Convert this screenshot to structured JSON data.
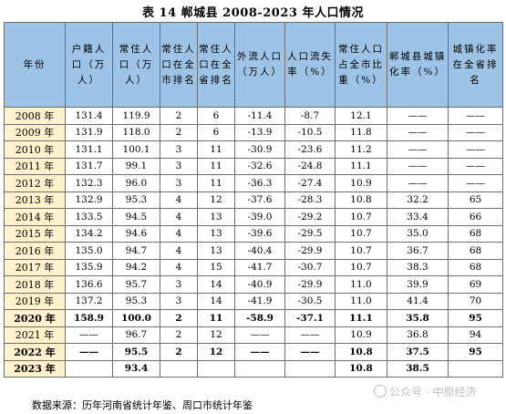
{
  "title": "表 14  郸城县 2008-2023 年人口情况",
  "columns": [
    "年份",
    "户籍人口（万人）",
    "常住人口（万人）",
    "常住人口在全市排名",
    "常住人口在全省排名",
    "外流人口（万人）",
    "人口流失率（%）",
    "常住人口占全市比重（%）",
    "郸城县城镇化率（%）",
    "城镇化率在全省排名"
  ],
  "rows": [
    {
      "year": "2008 年",
      "cells": [
        "131.4",
        "119.9",
        "2",
        "6",
        "-11.4",
        "-8.7",
        "12.1",
        "——",
        "——"
      ]
    },
    {
      "year": "2009 年",
      "cells": [
        "131.9",
        "118.0",
        "2",
        "6",
        "-13.9",
        "-10.5",
        "11.8",
        "——",
        "——"
      ]
    },
    {
      "year": "2010 年",
      "cells": [
        "131.1",
        "100.1",
        "3",
        "11",
        "-30.9",
        "-23.6",
        "11.2",
        "——",
        "——"
      ]
    },
    {
      "year": "2011 年",
      "cells": [
        "131.7",
        "99.1",
        "3",
        "11",
        "-32.6",
        "-24.8",
        "11.1",
        "——",
        "——"
      ]
    },
    {
      "year": "2012 年",
      "cells": [
        "132.3",
        "96.0",
        "3",
        "11",
        "-36.3",
        "-27.4",
        "10.9",
        "——",
        "——"
      ]
    },
    {
      "year": "2013 年",
      "cells": [
        "132.9",
        "95.3",
        "4",
        "12",
        "-37.6",
        "-28.3",
        "10.8",
        "32.2",
        "65"
      ]
    },
    {
      "year": "2014 年",
      "cells": [
        "133.5",
        "94.5",
        "4",
        "13",
        "-39.0",
        "-29.2",
        "10.7",
        "33.4",
        "66"
      ]
    },
    {
      "year": "2015 年",
      "cells": [
        "134.2",
        "94.6",
        "4",
        "13",
        "-39.6",
        "-29.5",
        "10.7",
        "35.0",
        "68"
      ]
    },
    {
      "year": "2016 年",
      "cells": [
        "135.0",
        "94.7",
        "4",
        "13",
        "-40.4",
        "-29.9",
        "10.7",
        "36.7",
        "68"
      ]
    },
    {
      "year": "2017 年",
      "cells": [
        "135.9",
        "94.2",
        "4",
        "15",
        "-41.7",
        "-30.7",
        "10.7",
        "38.3",
        "68"
      ]
    },
    {
      "year": "2018 年",
      "cells": [
        "136.6",
        "95.7",
        "3",
        "14",
        "-40.9",
        "-29.9",
        "11.0",
        "39.9",
        "69"
      ]
    },
    {
      "year": "2019 年",
      "cells": [
        "137.2",
        "95.3",
        "3",
        "14",
        "-41.9",
        "-30.5",
        "11.0",
        "41.4",
        "70"
      ]
    },
    {
      "year": "2020 年",
      "bold": true,
      "cells": [
        "158.9",
        "100.0",
        "2",
        "11",
        "-58.9",
        "-37.1",
        "11.1",
        "35.8",
        "95"
      ]
    },
    {
      "year": "2021 年",
      "cells": [
        "——",
        "96.7",
        "2",
        "12",
        "——",
        "——",
        "10.9",
        "36.8",
        "94"
      ]
    },
    {
      "year": "2022 年",
      "bold": true,
      "cells": [
        "——",
        "95.5",
        "2",
        "12",
        "——",
        "——",
        "10.8",
        "37.5",
        "95"
      ]
    },
    {
      "year": "2023 年",
      "bold": true,
      "cells": [
        "",
        "93.4",
        "",
        "",
        "",
        "",
        "10.8",
        "38.5",
        ""
      ]
    }
  ],
  "source": "数据来源：历年河南省统计年鉴、周口市统计年鉴",
  "watermark": "公众号 · 中原经济"
}
